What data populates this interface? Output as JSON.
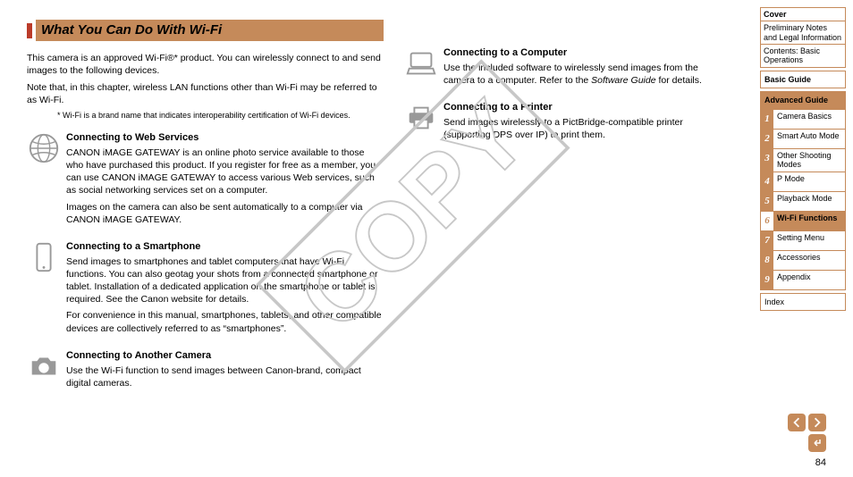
{
  "title": "What You Can Do With Wi-Fi",
  "intro_lines": [
    "This camera is an approved Wi-Fi®* product. You can wirelessly connect to and send images to the following devices.",
    "Note that, in this chapter, wireless LAN functions other than Wi-Fi may be referred to as Wi-Fi."
  ],
  "footnote": "* Wi-Fi is a brand name that indicates interoperability certification of Wi-Fi devices.",
  "sections_left": [
    {
      "title": "Connecting to Web Services",
      "icon": "globe-icon",
      "paras": [
        "CANON iMAGE GATEWAY is an online photo service available to those who have purchased this product. If you register for free as a member, you can use CANON iMAGE GATEWAY to access various Web services, such as social networking services set on a computer.",
        "Images on the camera can also be sent automatically to a computer via CANON iMAGE GATEWAY."
      ]
    },
    {
      "title": "Connecting to a Smartphone",
      "icon": "smartphone-icon",
      "paras": [
        "Send images to smartphones and tablet computers that have Wi-Fi functions. You can also geotag your shots from a connected smartphone or tablet. Installation of a dedicated application on the smartphone or tablet is required. See the Canon website for details.",
        "For convenience in this manual, smartphones, tablets, and other compatible devices are collectively referred to as “smartphones”."
      ]
    },
    {
      "title": "Connecting to Another Camera",
      "icon": "camera-icon",
      "paras": [
        "Use the Wi-Fi function to send images between Canon-brand, compact digital cameras."
      ]
    }
  ],
  "sections_right": [
    {
      "title": "Connecting to a Computer",
      "icon": "computer-icon",
      "paras": [
        "Use the included software to wirelessly send images from the camera to a computer. Refer to the Software Guide for details."
      ]
    },
    {
      "title": "Connecting to a Printer",
      "icon": "printer-icon",
      "paras": [
        "Send images wirelessly to a PictBridge-compatible printer (supporting DPS over IP) to print them."
      ]
    }
  ],
  "watermark": "COPY",
  "nav_top": [
    "Cover",
    "Preliminary Notes and Legal Information",
    "Contents: Basic Operations"
  ],
  "basic_guide": "Basic Guide",
  "advanced_guide": "Advanced Guide",
  "adv_items": [
    {
      "n": "1",
      "l": "Camera Basics"
    },
    {
      "n": "2",
      "l": "Smart Auto Mode"
    },
    {
      "n": "3",
      "l": "Other Shooting Modes"
    },
    {
      "n": "4",
      "l": "P Mode"
    },
    {
      "n": "5",
      "l": "Playback Mode"
    },
    {
      "n": "6",
      "l": "Wi-Fi Functions"
    },
    {
      "n": "7",
      "l": "Setting Menu"
    },
    {
      "n": "8",
      "l": "Accessories"
    },
    {
      "n": "9",
      "l": "Appendix"
    }
  ],
  "active_adv": "6",
  "index_label": "Index",
  "page_number": "84",
  "colors": {
    "accent": "#c58a5a",
    "accent_red": "#bb3b2a",
    "icon_gray": "#999999",
    "watermark": "#c7c7c7"
  }
}
